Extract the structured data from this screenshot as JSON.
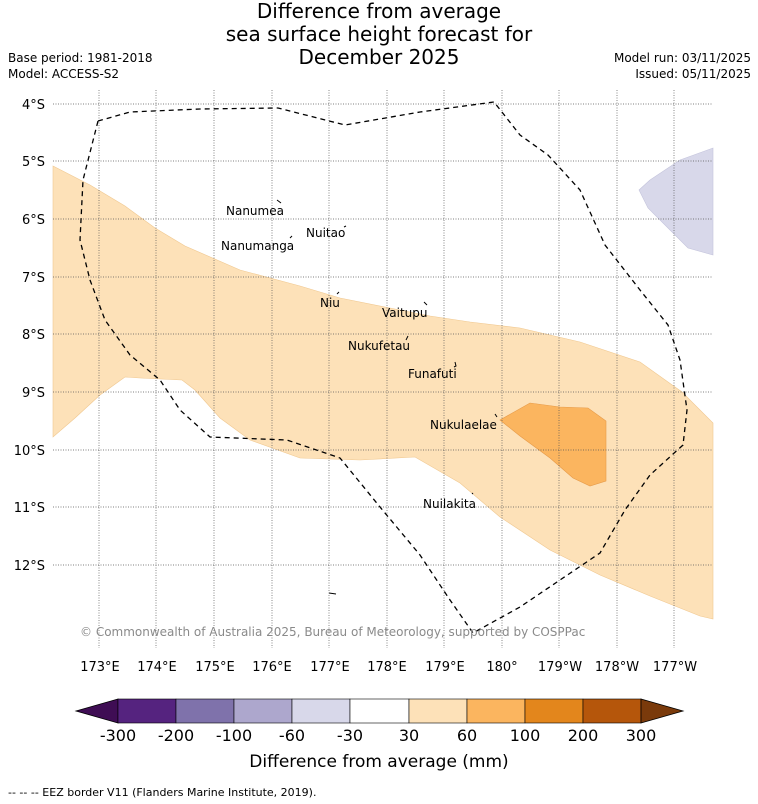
{
  "title": {
    "line1": "Difference from average",
    "line2": "sea surface height forecast for",
    "line3": "December 2025"
  },
  "meta": {
    "base_period": "Base period: 1981-2018",
    "model": "Model: ACCESS-S2",
    "model_run": "Model run: 03/11/2025",
    "issued": "Issued: 05/11/2025"
  },
  "axes": {
    "lat_labels": [
      "4°S",
      "5°S",
      "6°S",
      "7°S",
      "8°S",
      "9°S",
      "10°S",
      "11°S",
      "12°S"
    ],
    "lon_labels": [
      "173°E",
      "174°E",
      "175°E",
      "176°E",
      "177°E",
      "178°E",
      "179°E",
      "180°",
      "179°W",
      "178°W",
      "177°W"
    ]
  },
  "places": [
    {
      "name": "Nanumea"
    },
    {
      "name": "Nanumanga"
    },
    {
      "name": "Nuitao"
    },
    {
      "name": "Niu"
    },
    {
      "name": "Vaitupu"
    },
    {
      "name": "Nukufetau"
    },
    {
      "name": "Funafuti"
    },
    {
      "name": "Nukulaelae"
    },
    {
      "name": "Nuilakita"
    }
  ],
  "copyright": "© Commonwealth of Australia 2025, Bureau of Meteorology, supported by COSPPac",
  "colorbar": {
    "title": "Difference from average (mm)",
    "ticks": [
      "-300",
      "-200",
      "-100",
      "-60",
      "-30",
      "30",
      "60",
      "100",
      "200",
      "300"
    ],
    "colors": [
      "#3f0d54",
      "#55237f",
      "#7f72ab",
      "#ada7cd",
      "#d8d8ea",
      "#ffffff",
      "#fde1b8",
      "#fbb55f",
      "#e3861c",
      "#b5560b",
      "#7a3a0b"
    ]
  },
  "legend": {
    "eez": "--  --  -- EEZ border V11 (Flanders Marine Institute, 2019)."
  }
}
